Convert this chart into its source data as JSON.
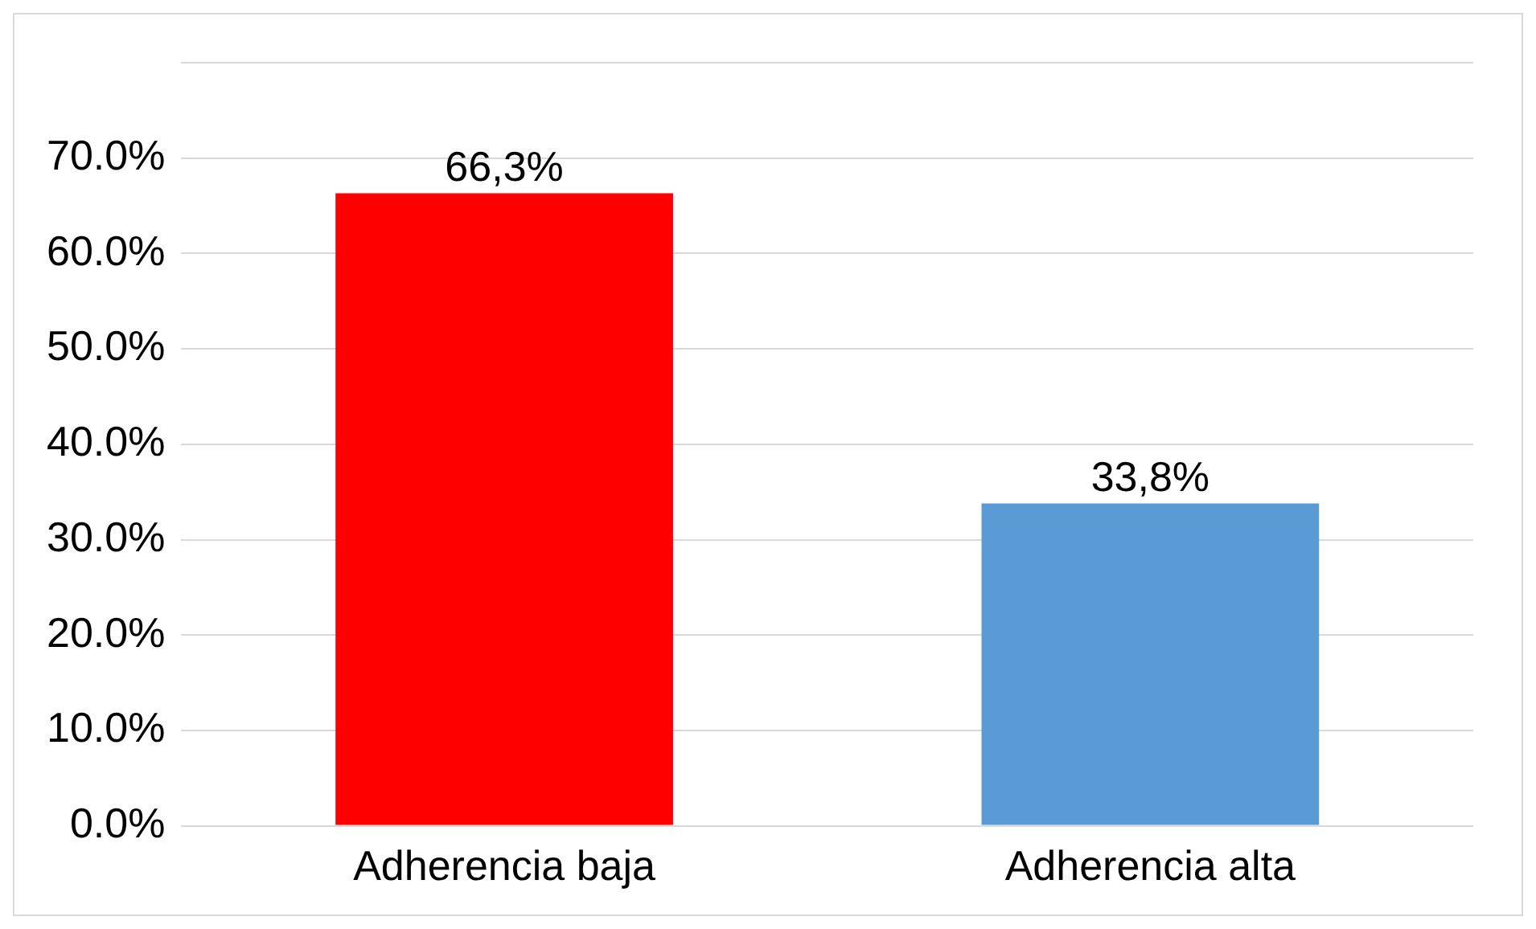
{
  "chart_data": {
    "type": "bar",
    "categories": [
      "Adherencia baja",
      "Adherencia alta"
    ],
    "values": [
      66.3,
      33.8
    ],
    "colors": [
      "#ff0000",
      "#5b9bd5"
    ],
    "value_labels": [
      "66,3%",
      "33,8%"
    ],
    "ylim": [
      0,
      80
    ],
    "yticks": [
      {
        "value": 0,
        "label": "0.0%"
      },
      {
        "value": 10,
        "label": "10.0%"
      },
      {
        "value": 20,
        "label": "20.0%"
      },
      {
        "value": 30,
        "label": "30.0%"
      },
      {
        "value": 40,
        "label": "40.0%"
      },
      {
        "value": 50,
        "label": "50.0%"
      },
      {
        "value": 60,
        "label": "60.0%"
      },
      {
        "value": 70,
        "label": "70.0%"
      },
      {
        "value": 80,
        "label": null
      }
    ],
    "grid": "y",
    "legend": false
  }
}
